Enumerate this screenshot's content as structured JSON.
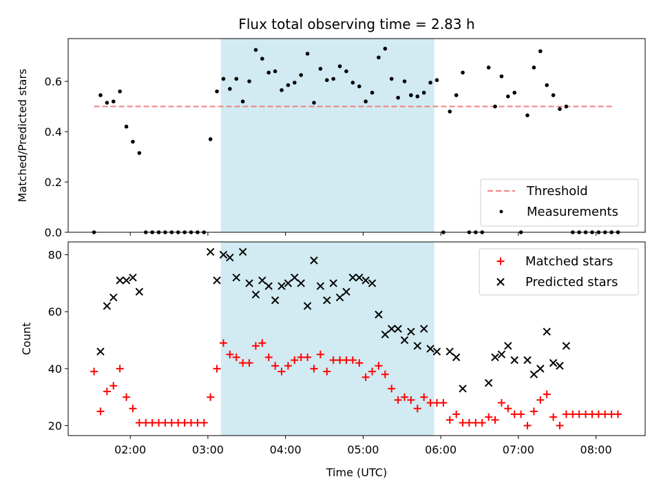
{
  "title": "Flux total observing time = 2.83 h",
  "colors": {
    "matched": "#ff0000",
    "predicted": "#000000",
    "threshold": "#f08080",
    "shade": "#add8e6",
    "points": "#000000"
  },
  "x_axis": {
    "label": "Time (UTC)",
    "range": [
      "01:12",
      "08:38"
    ],
    "ticks": [
      "02:00",
      "03:00",
      "04:00",
      "05:00",
      "06:00",
      "07:00",
      "08:00"
    ]
  },
  "shaded_interval": [
    "03:10",
    "05:55"
  ],
  "chart_data": [
    {
      "type": "scatter",
      "ylabel": "Matched/Predicted stars",
      "ylim": [
        0,
        0.77
      ],
      "yticks": [
        "0.0",
        "0.2",
        "0.4",
        "0.6"
      ],
      "legend_position": "lower-right",
      "threshold": {
        "name": "Threshold",
        "y": 0.5,
        "x_range": [
          "01:32",
          "08:14"
        ]
      },
      "series": [
        {
          "name": "Measurements",
          "points": [
            [
              "01:32",
              0
            ],
            [
              "01:37",
              0.545
            ],
            [
              "01:42",
              0.515
            ],
            [
              "01:47",
              0.52
            ],
            [
              "01:52",
              0.56
            ],
            [
              "01:57",
              0.42
            ],
            [
              "02:02",
              0.36
            ],
            [
              "02:07",
              0.315
            ],
            [
              "02:12",
              0
            ],
            [
              "02:17",
              0
            ],
            [
              "02:22",
              0
            ],
            [
              "02:27",
              0
            ],
            [
              "02:32",
              0
            ],
            [
              "02:37",
              0
            ],
            [
              "02:42",
              0
            ],
            [
              "02:47",
              0
            ],
            [
              "02:52",
              0
            ],
            [
              "02:57",
              0
            ],
            [
              "03:02",
              0.37
            ],
            [
              "03:07",
              0.56
            ],
            [
              "03:12",
              0.61
            ],
            [
              "03:17",
              0.57
            ],
            [
              "03:22",
              0.61
            ],
            [
              "03:27",
              0.52
            ],
            [
              "03:32",
              0.6
            ],
            [
              "03:37",
              0.725
            ],
            [
              "03:42",
              0.69
            ],
            [
              "03:47",
              0.635
            ],
            [
              "03:52",
              0.64
            ],
            [
              "03:57",
              0.565
            ],
            [
              "04:02",
              0.585
            ],
            [
              "04:07",
              0.595
            ],
            [
              "04:12",
              0.625
            ],
            [
              "04:17",
              0.71
            ],
            [
              "04:22",
              0.515
            ],
            [
              "04:27",
              0.65
            ],
            [
              "04:32",
              0.605
            ],
            [
              "04:37",
              0.61
            ],
            [
              "04:42",
              0.66
            ],
            [
              "04:47",
              0.64
            ],
            [
              "04:52",
              0.595
            ],
            [
              "04:57",
              0.58
            ],
            [
              "05:02",
              0.52
            ],
            [
              "05:07",
              0.555
            ],
            [
              "05:12",
              0.695
            ],
            [
              "05:17",
              0.73
            ],
            [
              "05:22",
              0.61
            ],
            [
              "05:27",
              0.535
            ],
            [
              "05:32",
              0.6
            ],
            [
              "05:37",
              0.545
            ],
            [
              "05:42",
              0.54
            ],
            [
              "05:47",
              0.555
            ],
            [
              "05:52",
              0.595
            ],
            [
              "05:57",
              0.605
            ],
            [
              "06:02",
              0
            ],
            [
              "06:07",
              0.48
            ],
            [
              "06:12",
              0.545
            ],
            [
              "06:17",
              0.635
            ],
            [
              "06:22",
              0
            ],
            [
              "06:27",
              0
            ],
            [
              "06:32",
              0
            ],
            [
              "06:37",
              0.655
            ],
            [
              "06:42",
              0.5
            ],
            [
              "06:47",
              0.62
            ],
            [
              "06:52",
              0.54
            ],
            [
              "06:57",
              0.555
            ],
            [
              "07:02",
              0
            ],
            [
              "07:07",
              0.465
            ],
            [
              "07:12",
              0.655
            ],
            [
              "07:17",
              0.72
            ],
            [
              "07:22",
              0.585
            ],
            [
              "07:27",
              0.545
            ],
            [
              "07:32",
              0.49
            ],
            [
              "07:37",
              0.5
            ],
            [
              "07:42",
              0
            ],
            [
              "07:47",
              0
            ],
            [
              "07:52",
              0
            ],
            [
              "07:57",
              0
            ],
            [
              "08:02",
              0
            ],
            [
              "08:07",
              0
            ],
            [
              "08:12",
              0
            ],
            [
              "08:17",
              0
            ]
          ]
        }
      ]
    },
    {
      "type": "scatter",
      "ylabel": "Count",
      "ylim": [
        16.5,
        84.5
      ],
      "yticks": [
        "20",
        "40",
        "60",
        "80"
      ],
      "legend_position": "upper-right",
      "series": [
        {
          "name": "Matched stars",
          "marker": "plus",
          "points": [
            [
              "01:32",
              39
            ],
            [
              "01:37",
              25
            ],
            [
              "01:42",
              32
            ],
            [
              "01:47",
              34
            ],
            [
              "01:52",
              40
            ],
            [
              "01:57",
              30
            ],
            [
              "02:02",
              26
            ],
            [
              "02:07",
              21
            ],
            [
              "02:12",
              21
            ],
            [
              "02:17",
              21
            ],
            [
              "02:22",
              21
            ],
            [
              "02:27",
              21
            ],
            [
              "02:32",
              21
            ],
            [
              "02:37",
              21
            ],
            [
              "02:42",
              21
            ],
            [
              "02:47",
              21
            ],
            [
              "02:52",
              21
            ],
            [
              "02:57",
              21
            ],
            [
              "03:02",
              30
            ],
            [
              "03:07",
              40
            ],
            [
              "03:12",
              49
            ],
            [
              "03:17",
              45
            ],
            [
              "03:22",
              44
            ],
            [
              "03:27",
              42
            ],
            [
              "03:32",
              42
            ],
            [
              "03:37",
              48
            ],
            [
              "03:42",
              49
            ],
            [
              "03:47",
              44
            ],
            [
              "03:52",
              41
            ],
            [
              "03:57",
              39
            ],
            [
              "04:02",
              41
            ],
            [
              "04:07",
              43
            ],
            [
              "04:12",
              44
            ],
            [
              "04:17",
              44
            ],
            [
              "04:22",
              40
            ],
            [
              "04:27",
              45
            ],
            [
              "04:32",
              39
            ],
            [
              "04:37",
              43
            ],
            [
              "04:42",
              43
            ],
            [
              "04:47",
              43
            ],
            [
              "04:52",
              43
            ],
            [
              "04:57",
              42
            ],
            [
              "05:02",
              37
            ],
            [
              "05:07",
              39
            ],
            [
              "05:12",
              41
            ],
            [
              "05:17",
              38
            ],
            [
              "05:22",
              33
            ],
            [
              "05:27",
              29
            ],
            [
              "05:32",
              30
            ],
            [
              "05:37",
              29
            ],
            [
              "05:42",
              26
            ],
            [
              "05:47",
              30
            ],
            [
              "05:52",
              28
            ],
            [
              "05:57",
              28
            ],
            [
              "06:02",
              28
            ],
            [
              "06:07",
              22
            ],
            [
              "06:12",
              24
            ],
            [
              "06:17",
              21
            ],
            [
              "06:22",
              21
            ],
            [
              "06:27",
              21
            ],
            [
              "06:32",
              21
            ],
            [
              "06:37",
              23
            ],
            [
              "06:42",
              22
            ],
            [
              "06:47",
              28
            ],
            [
              "06:52",
              26
            ],
            [
              "06:57",
              24
            ],
            [
              "07:02",
              24
            ],
            [
              "07:07",
              20
            ],
            [
              "07:12",
              25
            ],
            [
              "07:17",
              29
            ],
            [
              "07:22",
              31
            ],
            [
              "07:27",
              23
            ],
            [
              "07:32",
              20
            ],
            [
              "07:37",
              24
            ],
            [
              "07:42",
              24
            ],
            [
              "07:47",
              24
            ],
            [
              "07:52",
              24
            ],
            [
              "07:57",
              24
            ],
            [
              "08:02",
              24
            ],
            [
              "08:07",
              24
            ],
            [
              "08:12",
              24
            ],
            [
              "08:17",
              24
            ]
          ]
        },
        {
          "name": "Predicted stars",
          "marker": "x",
          "points": [
            [
              "01:37",
              46
            ],
            [
              "01:42",
              62
            ],
            [
              "01:47",
              65
            ],
            [
              "01:52",
              71
            ],
            [
              "01:57",
              71
            ],
            [
              "02:02",
              72
            ],
            [
              "02:07",
              67
            ],
            [
              "03:02",
              81
            ],
            [
              "03:07",
              71
            ],
            [
              "03:12",
              80
            ],
            [
              "03:17",
              79
            ],
            [
              "03:22",
              72
            ],
            [
              "03:27",
              81
            ],
            [
              "03:32",
              70
            ],
            [
              "03:37",
              66
            ],
            [
              "03:42",
              71
            ],
            [
              "03:47",
              69
            ],
            [
              "03:52",
              64
            ],
            [
              "03:57",
              69
            ],
            [
              "04:02",
              70
            ],
            [
              "04:07",
              72
            ],
            [
              "04:12",
              70
            ],
            [
              "04:17",
              62
            ],
            [
              "04:22",
              78
            ],
            [
              "04:27",
              69
            ],
            [
              "04:32",
              64
            ],
            [
              "04:37",
              70
            ],
            [
              "04:42",
              65
            ],
            [
              "04:47",
              67
            ],
            [
              "04:52",
              72
            ],
            [
              "04:57",
              72
            ],
            [
              "05:02",
              71
            ],
            [
              "05:07",
              70
            ],
            [
              "05:12",
              59
            ],
            [
              "05:17",
              52
            ],
            [
              "05:22",
              54
            ],
            [
              "05:27",
              54
            ],
            [
              "05:32",
              50
            ],
            [
              "05:37",
              53
            ],
            [
              "05:42",
              48
            ],
            [
              "05:47",
              54
            ],
            [
              "05:52",
              47
            ],
            [
              "05:57",
              46
            ],
            [
              "06:07",
              46
            ],
            [
              "06:12",
              44
            ],
            [
              "06:17",
              33
            ],
            [
              "06:37",
              35
            ],
            [
              "06:42",
              44
            ],
            [
              "06:47",
              45
            ],
            [
              "06:52",
              48
            ],
            [
              "06:57",
              43
            ],
            [
              "07:07",
              43
            ],
            [
              "07:12",
              38
            ],
            [
              "07:17",
              40
            ],
            [
              "07:22",
              53
            ],
            [
              "07:27",
              42
            ],
            [
              "07:32",
              41
            ],
            [
              "07:37",
              48
            ]
          ]
        }
      ]
    }
  ]
}
